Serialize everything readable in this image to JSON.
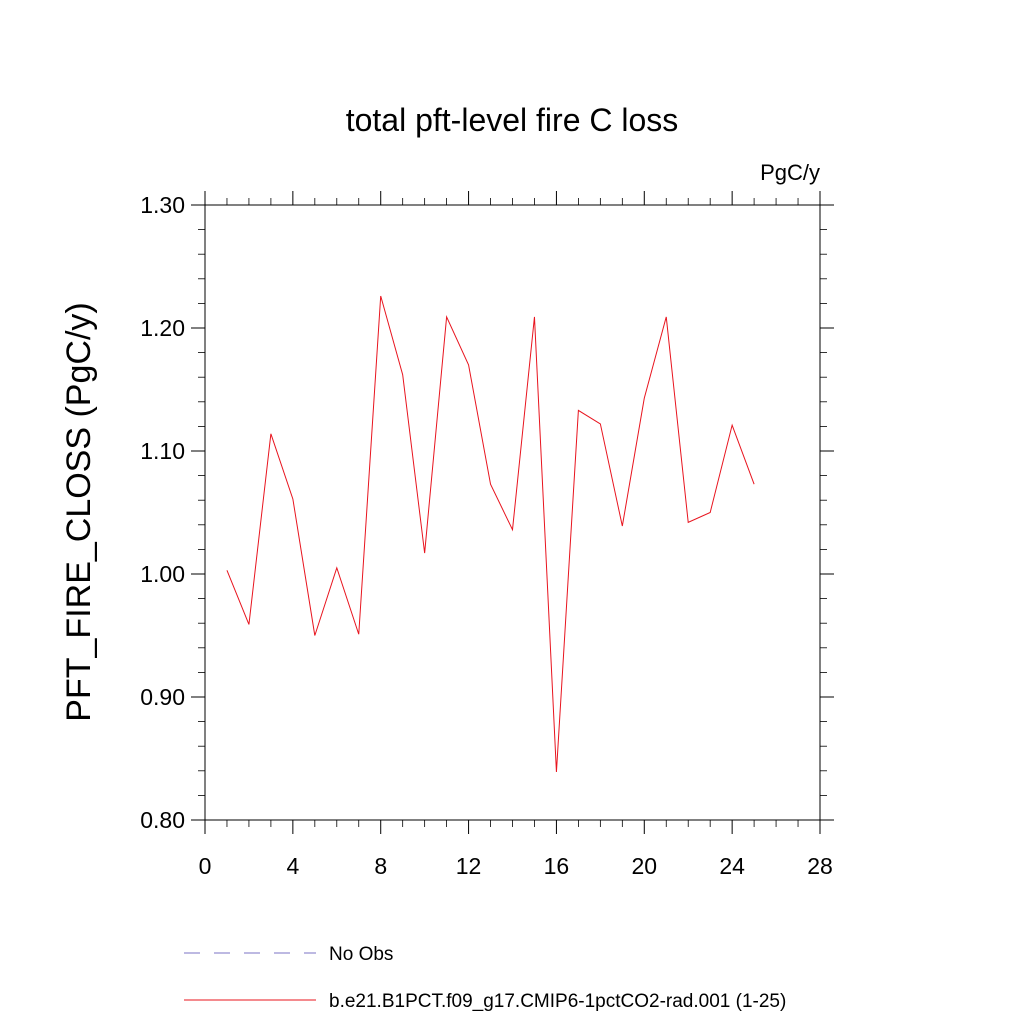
{
  "chart_data": {
    "type": "line",
    "title": "total pft-level fire C loss",
    "units": "PgC/y",
    "xlabel": "",
    "ylabel": "PFT_FIRE_CLOSS  (PgC/y)",
    "xlim": [
      0,
      28
    ],
    "ylim": [
      0.8,
      1.3
    ],
    "xticks": [
      0,
      4,
      8,
      12,
      16,
      20,
      24,
      28
    ],
    "yticks": [
      0.8,
      0.9,
      1.0,
      1.1,
      1.2,
      1.3
    ],
    "xtick_labels": [
      "0",
      "4",
      "8",
      "12",
      "16",
      "20",
      "24",
      "28"
    ],
    "ytick_labels": [
      "0.80",
      "0.90",
      "1.00",
      "1.10",
      "1.20",
      "1.30"
    ],
    "grid": false,
    "legend": "bottom",
    "series": [
      {
        "name": "b.e21.B1PCT.f09_g17.CMIP6-1pctCO2-rad.001 (1-25)",
        "color": "#e8141e",
        "style": "solid",
        "x": [
          1,
          2,
          3,
          4,
          5,
          6,
          7,
          8,
          9,
          10,
          11,
          12,
          13,
          14,
          15,
          16,
          17,
          18,
          19,
          20,
          21,
          22,
          23,
          24,
          25
        ],
        "y": [
          1.003,
          0.959,
          1.114,
          1.061,
          0.95,
          1.005,
          0.951,
          1.226,
          1.162,
          1.017,
          1.209,
          1.17,
          1.073,
          1.036,
          1.209,
          0.839,
          1.133,
          1.122,
          1.039,
          1.143,
          1.209,
          1.042,
          1.05,
          1.121,
          1.073
        ]
      }
    ],
    "legend_entries": [
      {
        "label": "No Obs",
        "color": "#7b73c4",
        "style": "dashed"
      },
      {
        "label": "b.e21.B1PCT.f09_g17.CMIP6-1pctCO2-rad.001 (1-25)",
        "color": "#e8141e",
        "style": "solid"
      }
    ]
  }
}
